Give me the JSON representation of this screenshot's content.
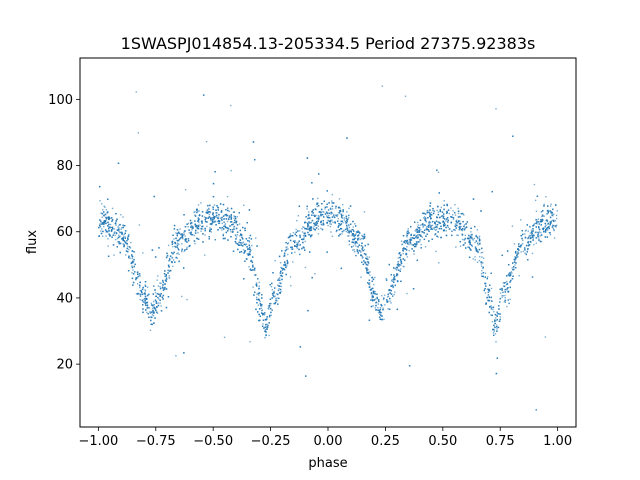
{
  "chart_data": {
    "type": "scatter",
    "title": "1SWASPJ014854.13-205334.5 Period 27375.92383s",
    "xlabel": "phase",
    "ylabel": "flux",
    "xlim": [
      -1.08,
      1.08
    ],
    "ylim": [
      1.0,
      112.5
    ],
    "xticks": [
      -1.0,
      -0.75,
      -0.5,
      -0.25,
      0.0,
      0.25,
      0.5,
      0.75,
      1.0
    ],
    "xtick_labels": [
      "−1.00",
      "−0.75",
      "−0.50",
      "−0.25",
      "0.00",
      "0.25",
      "0.50",
      "0.75",
      "1.00"
    ],
    "yticks": [
      20,
      40,
      60,
      80,
      100
    ],
    "ytick_labels": [
      "20",
      "40",
      "60",
      "80",
      "100"
    ],
    "grid": false,
    "legend": "none",
    "marker_color": "#1f77b4",
    "x_range": [
      -1.0,
      1.0
    ],
    "curve_profile": {
      "x": [
        -1.0,
        -0.9,
        -0.8,
        -0.77,
        -0.74,
        -0.65,
        -0.55,
        -0.5,
        -0.45,
        -0.35,
        -0.3,
        -0.27,
        -0.24,
        -0.15,
        -0.05,
        0.0,
        0.05,
        0.15,
        0.2,
        0.23,
        0.26,
        0.35,
        0.45,
        0.5,
        0.55,
        0.65,
        0.7,
        0.73,
        0.76,
        0.85,
        0.95,
        1.0
      ],
      "y": [
        64,
        59,
        41,
        35,
        40,
        57,
        63,
        64,
        63,
        56,
        40,
        31,
        41,
        57,
        64,
        65,
        64,
        56,
        41,
        36,
        41,
        57,
        63,
        64,
        63,
        56,
        41,
        31,
        41,
        57,
        63,
        64
      ]
    }
  }
}
